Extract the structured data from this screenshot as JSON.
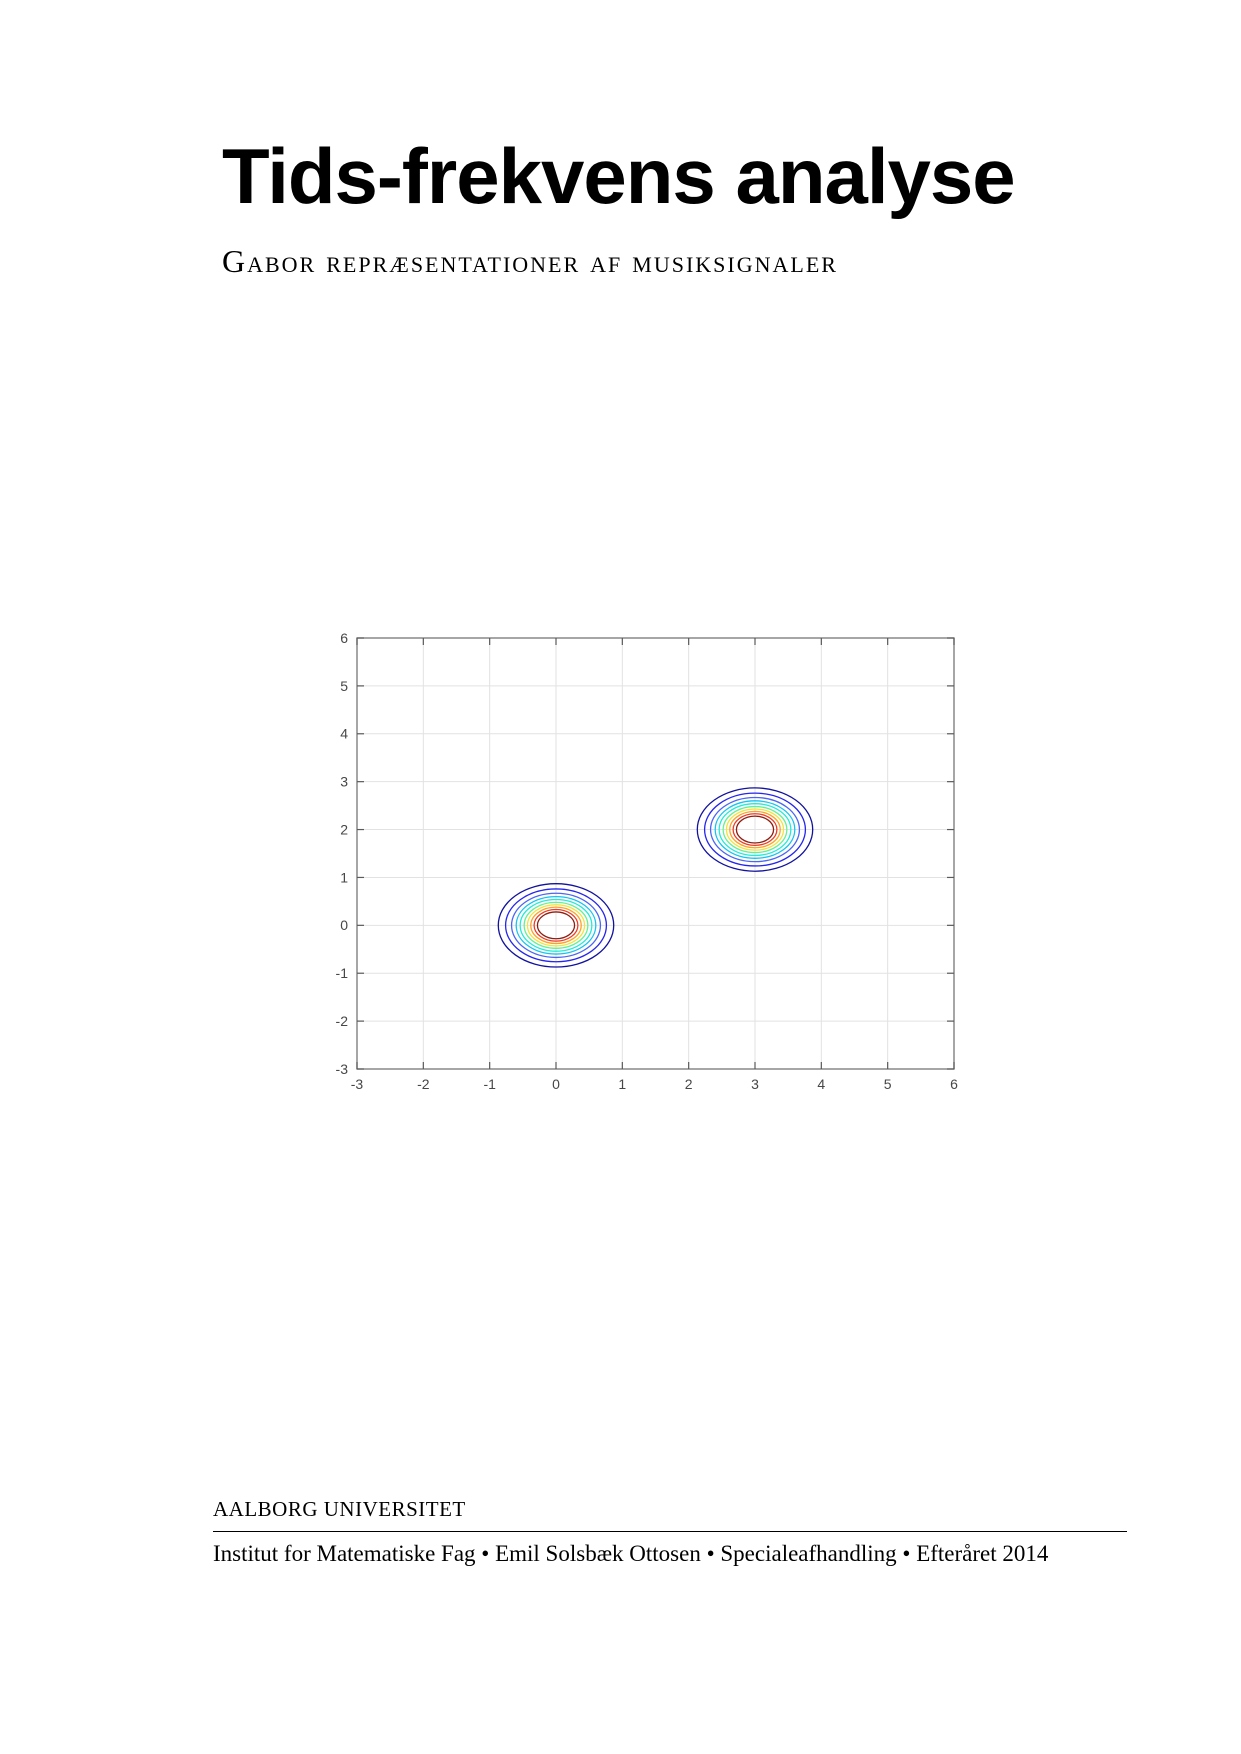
{
  "header": {
    "title": "Tids-frekvens analyse",
    "subtitle": "Gabor repræsentationer af musiksignaler"
  },
  "footer": {
    "organization": "AALBORG UNIVERSITET",
    "info_line": "Institut for Matematiske Fag • Emil Solsbæk Ottosen • Specialeafhandling • Efteråret 2014"
  },
  "chart_data": {
    "type": "contour",
    "title": "",
    "xlabel": "",
    "ylabel": "",
    "xlim": [
      -3,
      6
    ],
    "ylim": [
      -3,
      6
    ],
    "x_ticks": [
      -3,
      -2,
      -1,
      0,
      1,
      2,
      3,
      4,
      5,
      6
    ],
    "y_ticks": [
      -3,
      -2,
      -1,
      0,
      1,
      2,
      3,
      4,
      5,
      6
    ],
    "grid": true,
    "legend": "none",
    "colormap": "jet",
    "gaussians": [
      {
        "center": [
          0,
          0
        ]
      },
      {
        "center": [
          3,
          2
        ]
      }
    ],
    "ring_radii": [
      0.87,
      0.76,
      0.67,
      0.6,
      0.54,
      0.48,
      0.43,
      0.38,
      0.33,
      0.28
    ],
    "ring_colors": [
      "#12129E",
      "#2525EE",
      "#4D66F2",
      "#17C3F0",
      "#22EBD7",
      "#66F095",
      "#F2E33E",
      "#FFA126",
      "#EE3C23",
      "#8E1E12"
    ],
    "colors": {
      "grid_line": "#e2e2e2",
      "axis_border": "#808080",
      "tick_mark": "#5a5a5a",
      "tick_label": "#474747",
      "plot_background": "#ffffff"
    }
  }
}
